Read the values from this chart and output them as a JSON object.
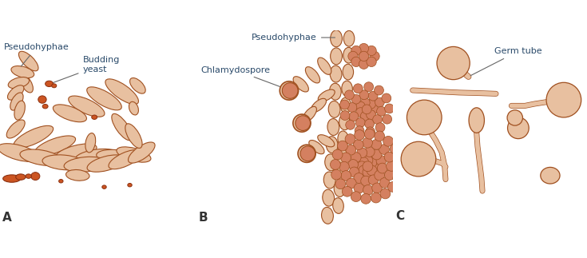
{
  "bg_color": "#ffffff",
  "fill_light": "#e8c0a0",
  "fill_dark": "#cc5522",
  "fill_medium": "#d48060",
  "ec_color": "#a05020",
  "ec_dark": "#8b3010",
  "text_color": "#2a4a6a",
  "label_A": "A",
  "label_B": "B",
  "label_C": "C",
  "label_pseudohyphae_A": "Pseudohyphae",
  "label_budding": "Budding\nyeast",
  "label_pseudohyphae_B": "Pseudohyphae",
  "label_chlamydospore": "Chlamydospore",
  "label_germ": "Germ tube"
}
